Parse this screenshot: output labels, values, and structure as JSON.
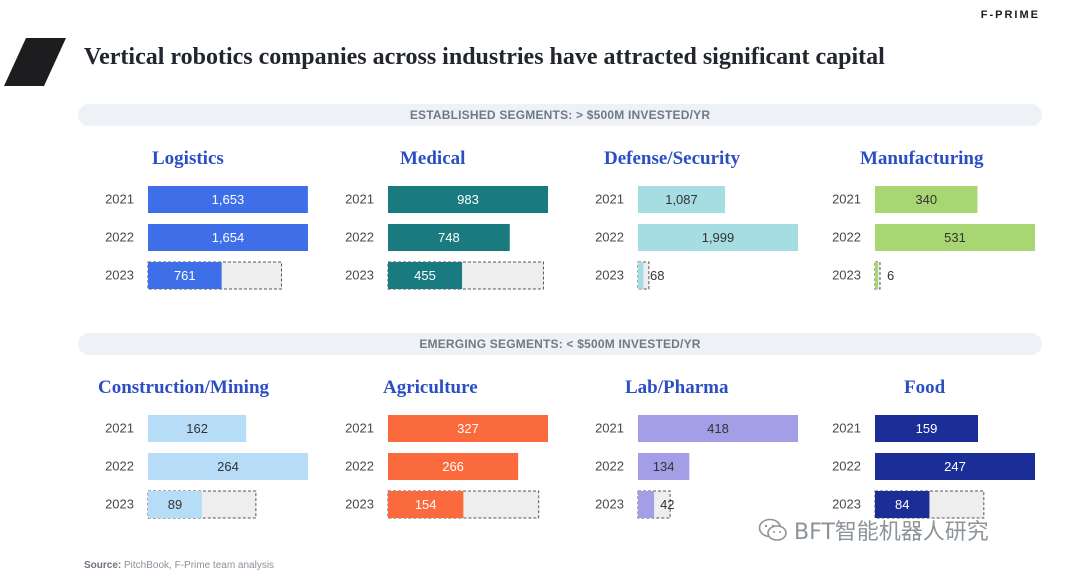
{
  "brand": "F-PRIME",
  "title": "Vertical robotics companies across industries have attracted significant capital",
  "bands": {
    "established": "ESTABLISHED SEGMENTS:  > $500M INVESTED/YR",
    "emerging": "EMERGING SEGMENTS:  < $500M INVESTED/YR"
  },
  "source": {
    "label": "Source:",
    "text": " PitchBook, F-Prime team analysis"
  },
  "watermark": "BFT智能机器人研究",
  "colors": {
    "logistics": "#3f6fe8",
    "medical": "#197b80",
    "defense": "#a6dde3",
    "manufacturing": "#a8d673",
    "construction": "#b6dcf8",
    "agriculture": "#fa6a3c",
    "lab_pharma": "#a39ee6",
    "food": "#1b2e97",
    "projection_fill": "#eeeeee"
  },
  "chart_data": [
    {
      "type": "bar",
      "title": "Logistics",
      "categories": [
        "2021",
        "2022",
        "2023"
      ],
      "values": [
        1653,
        1654,
        761
      ],
      "labels": [
        "1,653",
        "1,654",
        "761"
      ],
      "projected_2023": 1380,
      "color_key": "logistics",
      "label_light": true
    },
    {
      "type": "bar",
      "title": "Medical",
      "categories": [
        "2021",
        "2022",
        "2023"
      ],
      "values": [
        983,
        748,
        455
      ],
      "labels": [
        "983",
        "748",
        "455"
      ],
      "projected_2023": 955,
      "color_key": "medical",
      "label_light": true
    },
    {
      "type": "bar",
      "title": "Defense/Security",
      "categories": [
        "2021",
        "2022",
        "2023"
      ],
      "values": [
        1087,
        1999,
        68
      ],
      "labels": [
        "1,087",
        "1,999",
        "68"
      ],
      "projected_2023": 136,
      "color_key": "defense",
      "label_light": false
    },
    {
      "type": "bar",
      "title": "Manufacturing",
      "categories": [
        "2021",
        "2022",
        "2023"
      ],
      "values": [
        340,
        531,
        6
      ],
      "labels": [
        "340",
        "531",
        "6"
      ],
      "projected_2023": 12,
      "color_key": "manufacturing",
      "label_light": false
    },
    {
      "type": "bar",
      "title": "Construction/Mining",
      "categories": [
        "2021",
        "2022",
        "2023"
      ],
      "values": [
        162,
        264,
        89
      ],
      "labels": [
        "162",
        "264",
        "89"
      ],
      "projected_2023": 178,
      "color_key": "construction",
      "label_light": false
    },
    {
      "type": "bar",
      "title": "Agriculture",
      "categories": [
        "2021",
        "2022",
        "2023"
      ],
      "values": [
        327,
        266,
        154
      ],
      "labels": [
        "327",
        "266",
        "154"
      ],
      "projected_2023": 308,
      "color_key": "agriculture",
      "label_light": true
    },
    {
      "type": "bar",
      "title": "Lab/Pharma",
      "categories": [
        "2021",
        "2022",
        "2023"
      ],
      "values": [
        418,
        134,
        42
      ],
      "labels": [
        "418",
        "134",
        "42"
      ],
      "projected_2023": 84,
      "color_key": "lab_pharma",
      "label_light": false
    },
    {
      "type": "bar",
      "title": "Food",
      "categories": [
        "2021",
        "2022",
        "2023"
      ],
      "values": [
        159,
        247,
        84
      ],
      "labels": [
        "159",
        "247",
        "84"
      ],
      "projected_2023": 168,
      "color_key": "food",
      "label_light": true
    }
  ]
}
